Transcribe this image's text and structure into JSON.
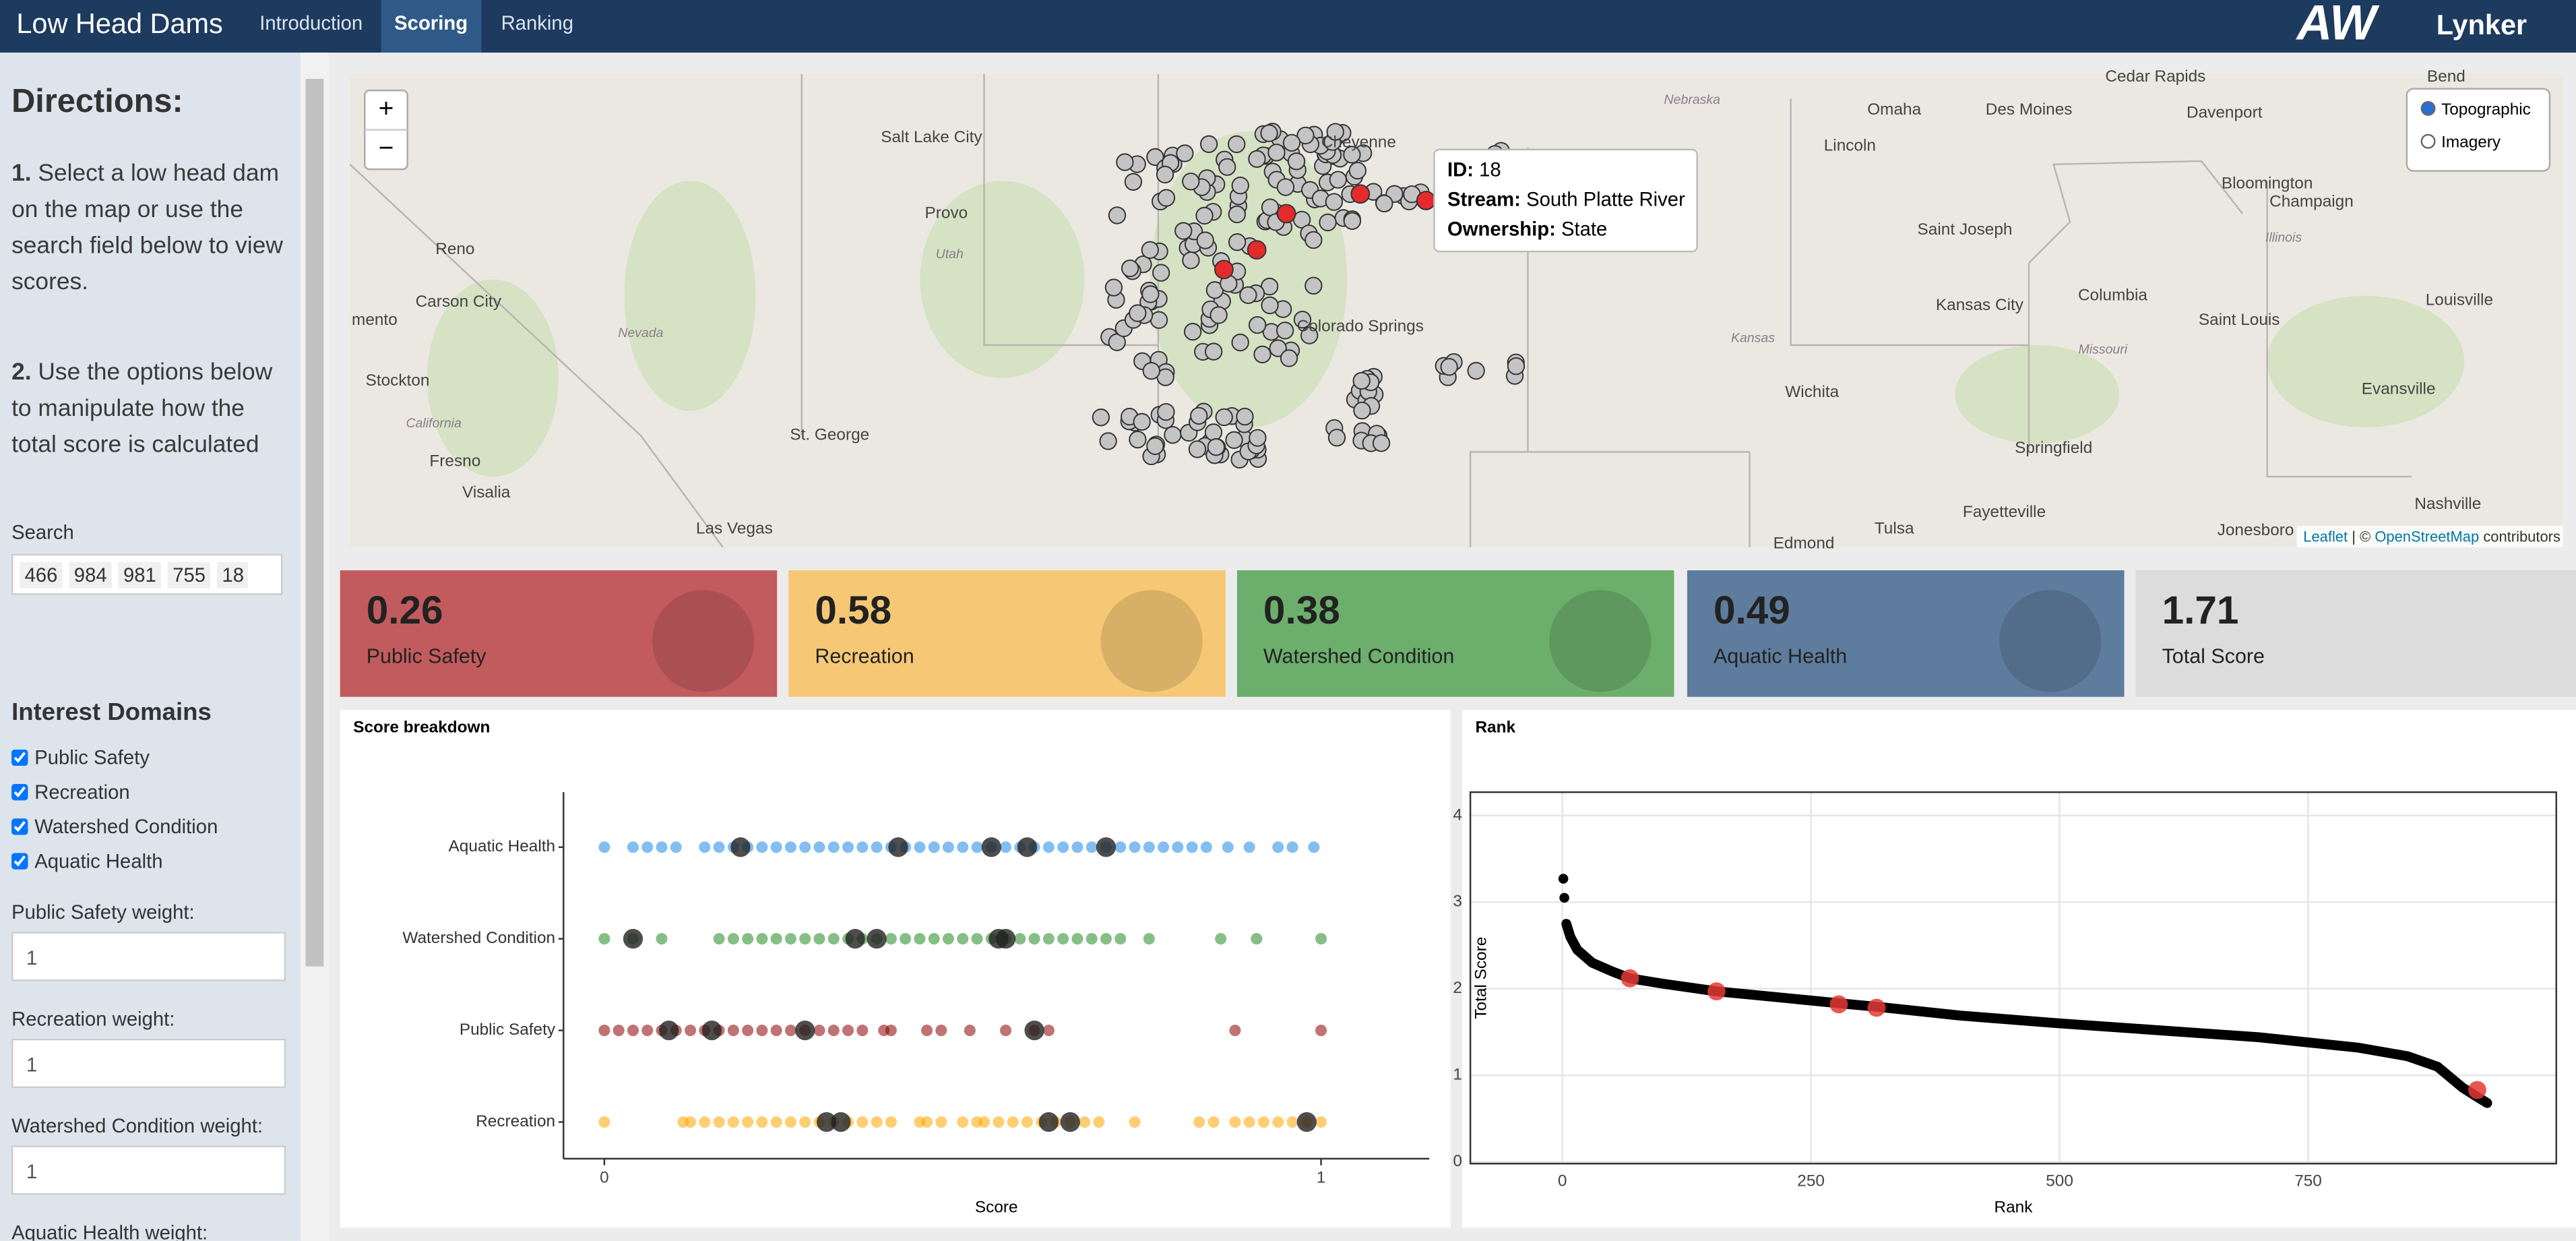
{
  "nav": {
    "brand": "Low Head Dams",
    "tabs": [
      "Introduction",
      "Scoring",
      "Ranking"
    ],
    "active_tab": 1,
    "logos": [
      "AW",
      "Lynker"
    ]
  },
  "sidebar": {
    "heading": "Directions:",
    "steps": [
      {
        "number": "1.",
        "text": "Select a low head dam on the map or use the search field below to view scores."
      },
      {
        "number": "2.",
        "text": "Use the options below to manipulate how the total score is calculated"
      }
    ],
    "search_label": "Search",
    "search_tags": [
      "466",
      "984",
      "981",
      "755",
      "18"
    ],
    "domains_heading": "Interest Domains",
    "domains": [
      "Public Safety",
      "Recreation",
      "Watershed Condition",
      "Aquatic Health"
    ],
    "weights": [
      {
        "label": "Public Safety weight:",
        "value": "1"
      },
      {
        "label": "Recreation weight:",
        "value": "1"
      },
      {
        "label": "Watershed Condition weight:",
        "value": "1"
      },
      {
        "label": "Aquatic Health weight:"
      }
    ]
  },
  "map": {
    "zoom_in": "+",
    "zoom_out": "−",
    "layers": [
      "Topographic",
      "Imagery"
    ],
    "selected_layer": 0,
    "places": [
      "Salt Lake City",
      "Provo",
      "Reno",
      "Carson City",
      "mento",
      "Stockton",
      "Fresno",
      "Visalia",
      "Las Vegas",
      "St. George",
      "Cheyenne",
      "Colorado Springs",
      "Omaha",
      "Des Moines",
      "Lincoln",
      "Davenport",
      "Cedar Rapids",
      "Bend",
      "Saint Joseph",
      "Kansas City",
      "Columbia",
      "Wichita",
      "Springfield",
      "Tulsa",
      "Fayetteville",
      "Nashville",
      "Louisville",
      "Evansville",
      "Saint Louis",
      "Champaign",
      "Bloomington",
      "Jonesboro",
      "Edmond"
    ],
    "regions": [
      "Nebraska",
      "Utah",
      "Nevada",
      "California",
      "Kansas",
      "Missouri",
      "Illinois"
    ],
    "tooltip": [
      {
        "key": "ID:",
        "value": "18"
      },
      {
        "key": "Stream:",
        "value": "South Platte River"
      },
      {
        "key": "Ownership:",
        "value": "State"
      }
    ],
    "attribution": [
      "Leaflet",
      "| ©",
      "OpenStreetMap",
      "contributors"
    ]
  },
  "cards": [
    {
      "value": 0.26,
      "label": "Public Safety",
      "color": "#c25b5e"
    },
    {
      "value": 0.58,
      "label": "Recreation",
      "color": "#f6c875"
    },
    {
      "value": 0.38,
      "label": "Watershed Condition",
      "color": "#6cae6c"
    },
    {
      "value": 0.49,
      "label": "Aquatic Health",
      "color": "#5e7c9d"
    },
    {
      "value": 1.71,
      "label": "Total Score",
      "color": "#dcdcdc"
    }
  ],
  "score_breakdown": {
    "type": "strip",
    "title": "Score breakdown",
    "x_label": "Score",
    "xlim": [
      -0.057,
      1.151
    ],
    "xticks": [
      0,
      1
    ],
    "selected_color": "#222222",
    "groups": [
      {
        "category": "Aquatic Health",
        "color": "#1e88e5",
        "values": [
          0,
          0.04,
          0.06,
          0.08,
          0.1,
          0.14,
          0.16,
          0.18,
          0.2,
          0.22,
          0.24,
          0.26,
          0.28,
          0.3,
          0.32,
          0.34,
          0.36,
          0.38,
          0.4,
          0.42,
          0.44,
          0.46,
          0.48,
          0.5,
          0.52,
          0.54,
          0.56,
          0.58,
          0.6,
          0.62,
          0.64,
          0.66,
          0.68,
          0.7,
          0.72,
          0.74,
          0.76,
          0.78,
          0.8,
          0.82,
          0.84,
          0.87,
          0.9,
          0.94,
          0.96,
          0.99
        ],
        "selected": [
          0.19,
          0.41,
          0.54,
          0.59,
          0.7
        ]
      },
      {
        "category": "Watershed Condition",
        "color": "#228b22",
        "values": [
          0,
          0.04,
          0.08,
          0.16,
          0.18,
          0.2,
          0.22,
          0.24,
          0.26,
          0.28,
          0.3,
          0.32,
          0.34,
          0.36,
          0.38,
          0.4,
          0.42,
          0.44,
          0.46,
          0.48,
          0.5,
          0.52,
          0.54,
          0.56,
          0.58,
          0.6,
          0.62,
          0.64,
          0.66,
          0.68,
          0.7,
          0.72,
          0.76,
          0.86,
          0.91,
          1
        ],
        "selected": [
          0.04,
          0.35,
          0.38,
          0.55,
          0.56
        ]
      },
      {
        "category": "Public Safety",
        "color": "#8b0000",
        "values": [
          0,
          0.02,
          0.04,
          0.06,
          0.08,
          0.1,
          0.12,
          0.14,
          0.16,
          0.18,
          0.2,
          0.22,
          0.24,
          0.26,
          0.28,
          0.3,
          0.32,
          0.34,
          0.36,
          0.39,
          0.4,
          0.45,
          0.47,
          0.51,
          0.56,
          0.6,
          0.62,
          0.88,
          1
        ],
        "selected": [
          0.09,
          0.15,
          0.28,
          0.6
        ]
      },
      {
        "category": "Recreation",
        "color": "#ffa500",
        "values": [
          0,
          0.11,
          0.12,
          0.14,
          0.16,
          0.18,
          0.2,
          0.22,
          0.24,
          0.26,
          0.28,
          0.3,
          0.32,
          0.34,
          0.36,
          0.38,
          0.4,
          0.44,
          0.45,
          0.47,
          0.5,
          0.52,
          0.53,
          0.55,
          0.57,
          0.59,
          0.61,
          0.63,
          0.65,
          0.67,
          0.69,
          0.74,
          0.83,
          0.85,
          0.88,
          0.9,
          0.92,
          0.94,
          0.96,
          0.98,
          1
        ],
        "selected": [
          0.31,
          0.33,
          0.62,
          0.65,
          0.98
        ]
      }
    ]
  },
  "rank": {
    "type": "line",
    "title": "Rank",
    "x_label": "Rank",
    "y_label": "Total Score",
    "xlim": [
      -92.5,
      999.5
    ],
    "ylim": [
      -0.02,
      4.27
    ],
    "xticks": [
      0,
      250,
      500,
      750
    ],
    "yticks": [
      0,
      1,
      2,
      3,
      4
    ],
    "grid": true,
    "color": "#000000",
    "top_points": {
      "x": [
        1,
        2
      ],
      "values": [
        3.27,
        3.05
      ]
    },
    "curve": {
      "x": [
        4,
        8,
        15,
        30,
        50,
        68,
        100,
        155,
        200,
        280,
        318,
        400,
        500,
        600,
        700,
        800,
        850,
        880,
        905,
        920,
        930
      ],
      "values": [
        2.75,
        2.6,
        2.45,
        2.3,
        2.2,
        2.12,
        2.06,
        1.97,
        1.92,
        1.83,
        1.79,
        1.69,
        1.6,
        1.52,
        1.44,
        1.32,
        1.22,
        1.1,
        0.86,
        0.75,
        0.68
      ]
    },
    "selected": {
      "color": "#e53935",
      "x": [
        68,
        155,
        278,
        316,
        920
      ],
      "values": [
        2.12,
        1.97,
        1.82,
        1.78,
        0.83
      ]
    }
  }
}
